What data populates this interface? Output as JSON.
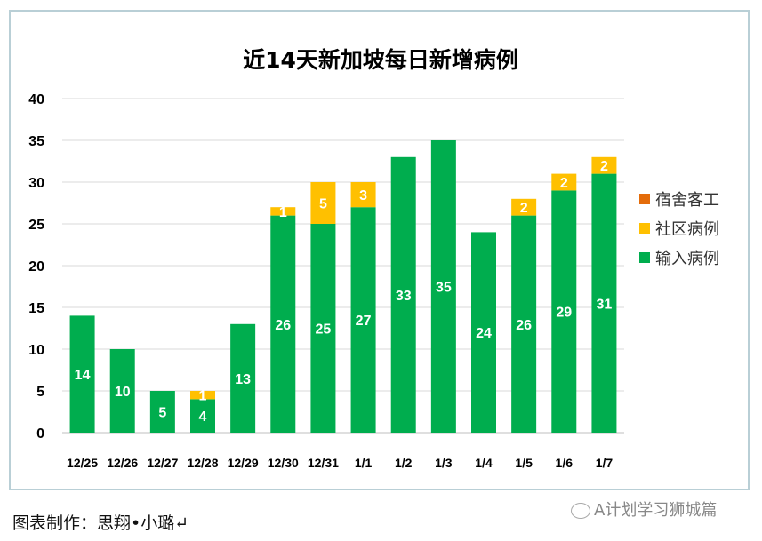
{
  "chart_data": {
    "type": "bar",
    "stacked": true,
    "title": "近14天新加坡每日新增病例",
    "categories": [
      "12/25",
      "12/26",
      "12/27",
      "12/28",
      "12/29",
      "12/30",
      "12/31",
      "1/1",
      "1/2",
      "1/3",
      "1/4",
      "1/5",
      "1/6",
      "1/7"
    ],
    "series": [
      {
        "name": "输入病例",
        "color": "#00ad4e",
        "values": [
          14,
          10,
          5,
          4,
          13,
          26,
          25,
          27,
          33,
          35,
          24,
          26,
          29,
          31
        ]
      },
      {
        "name": "社区病例",
        "color": "#ffc000",
        "values": [
          0,
          0,
          0,
          1,
          0,
          1,
          5,
          3,
          0,
          0,
          0,
          2,
          2,
          2
        ]
      },
      {
        "name": "宿舍客工",
        "color": "#e46c0a",
        "values": [
          0,
          0,
          0,
          0,
          0,
          0,
          0,
          0,
          0,
          0,
          0,
          0,
          0,
          0
        ]
      }
    ],
    "ylim": [
      0,
      40
    ],
    "yticks": [
      0,
      5,
      10,
      15,
      20,
      25,
      30,
      35,
      40
    ],
    "grid": true,
    "legend": "right"
  },
  "footer": {
    "credit": "图表制作：思翔•小璐↵",
    "watermark": "A计划学习狮城篇"
  }
}
